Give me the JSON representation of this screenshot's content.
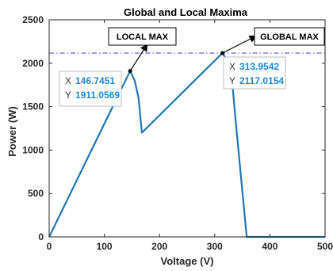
{
  "chart_data": {
    "type": "line",
    "title": "Global and Local Maxima",
    "xlabel": "Voltage (V)",
    "ylabel": "Power (W)",
    "xlim": [
      0,
      500
    ],
    "ylim": [
      0,
      2500
    ],
    "xticks": [
      "0",
      "100",
      "200",
      "300",
      "400",
      "500"
    ],
    "yticks": [
      "0",
      "500",
      "1000",
      "1500",
      "2000",
      "2500"
    ],
    "series": [
      {
        "color": "#1f77b4",
        "x": [
          0,
          146.7451,
          155,
          162,
          168,
          313.9542,
          320,
          330,
          340,
          358,
          500
        ],
        "y": [
          0,
          1911.0569,
          1800,
          1600,
          1200,
          2117.0154,
          2060,
          1900,
          1200,
          0,
          0
        ]
      }
    ],
    "reference_line": {
      "y": 2117.0154,
      "color": "#3b3bd6",
      "style": "dash-dot"
    },
    "annotations": [
      {
        "label": "LOCAL MAX",
        "x": 146.7451,
        "y": 1911.0569,
        "tip_x_label": "X",
        "tip_x": "146.7451",
        "tip_y_label": "Y",
        "tip_y": "1911.0569"
      },
      {
        "label": "GLOBAL MAX",
        "x": 313.9542,
        "y": 2117.0154,
        "tip_x_label": "X",
        "tip_x": "313.9542",
        "tip_y_label": "Y",
        "tip_y": "2117.0154"
      }
    ],
    "grid": false
  }
}
